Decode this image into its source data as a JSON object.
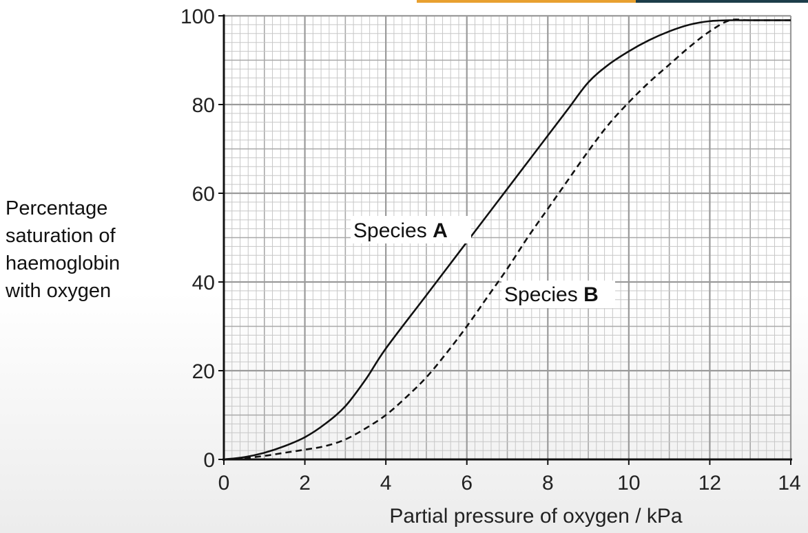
{
  "colors": {
    "accent_orange": "#e8a030",
    "accent_dark": "#1d3d4a",
    "grid_minor": "#c7c7c7",
    "grid_major": "#9a9a9a",
    "curve": "#111111"
  },
  "chart_data": {
    "type": "line",
    "xlabel": "Partial pressure of oxygen / kPa",
    "ylabel_lines": [
      "Percentage",
      "saturation of",
      "haemoglobin",
      "with oxygen"
    ],
    "xlim": [
      0,
      14
    ],
    "ylim": [
      0,
      100
    ],
    "xticks": [
      "0",
      "2",
      "4",
      "6",
      "8",
      "10",
      "12",
      "14"
    ],
    "yticks": [
      "0",
      "20",
      "40",
      "60",
      "80",
      "100"
    ],
    "grid": true,
    "series": [
      {
        "name": "Species A",
        "label_main": "Species ",
        "label_letter": "A",
        "style": "solid",
        "x": [
          0,
          0.5,
          1,
          1.5,
          2,
          2.5,
          3,
          3.5,
          4,
          5,
          6,
          7,
          8,
          8.5,
          9,
          9.5,
          10,
          10.5,
          11,
          11.5,
          12,
          12.5,
          13,
          14
        ],
        "y": [
          0,
          0.5,
          1.5,
          3,
          5,
          8,
          12,
          18,
          25,
          37,
          49,
          61,
          73,
          79,
          85,
          89,
          92,
          94.5,
          96.5,
          98,
          98.8,
          99,
          99,
          99
        ]
      },
      {
        "name": "Species B",
        "label_main": "Species ",
        "label_letter": "B",
        "style": "dashed",
        "x": [
          0,
          0.5,
          1,
          1.5,
          2,
          2.5,
          3,
          3.5,
          4,
          4.5,
          5,
          5.5,
          6,
          6.5,
          7,
          7.5,
          8,
          8.5,
          9,
          9.5,
          10,
          10.5,
          11,
          11.5,
          12,
          12.5,
          13,
          14
        ],
        "y": [
          0,
          0.3,
          0.8,
          1.5,
          2.2,
          3,
          4.5,
          7,
          10,
          14,
          18.5,
          24,
          30,
          36.5,
          43,
          50,
          56.5,
          63,
          69.5,
          75.5,
          80.5,
          85,
          89,
          93,
          96.5,
          99,
          99,
          99
        ]
      }
    ]
  }
}
